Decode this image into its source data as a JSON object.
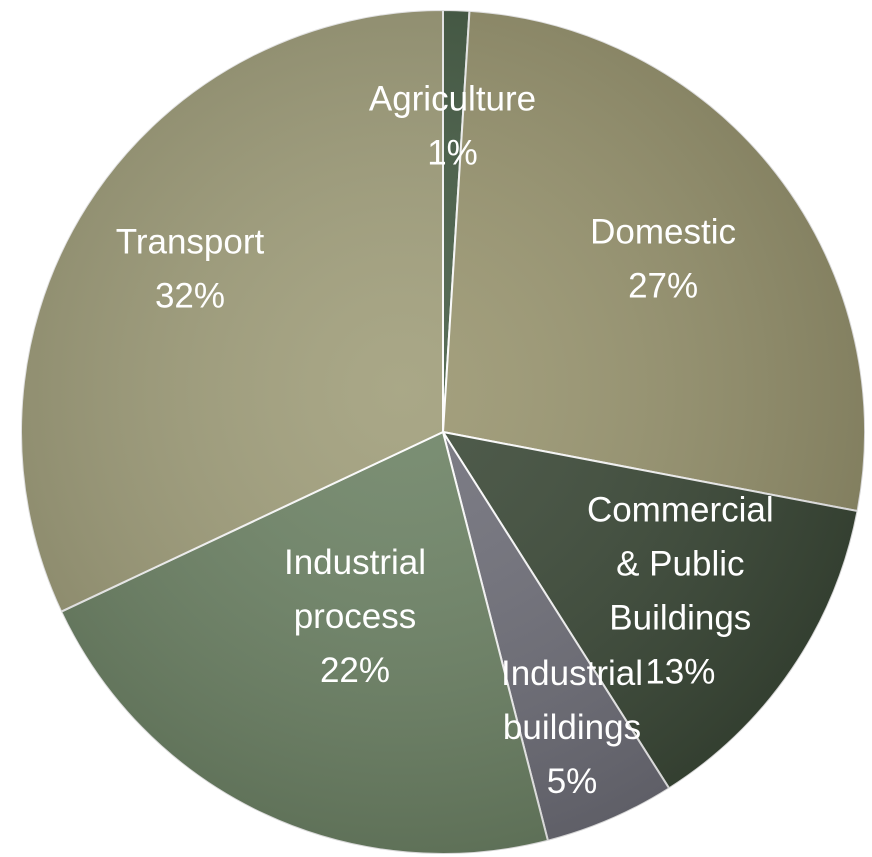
{
  "chart_data": {
    "type": "pie",
    "slices": [
      {
        "label": "Agriculture",
        "value": 1,
        "display": "1%",
        "label_lines": [
          "Agriculture",
          "1%"
        ],
        "color": "#465D45"
      },
      {
        "label": "Domestic",
        "value": 27,
        "display": "27%",
        "label_lines": [
          "Domestic",
          "27%"
        ],
        "color": "#9A9670"
      },
      {
        "label": "Commercial & Public Buildings",
        "value": 13,
        "display": "13%",
        "label_lines": [
          "Commercial",
          "& Public",
          "Buildings",
          "13%"
        ],
        "color": "#3C4A38"
      },
      {
        "label": "Industrial buildings",
        "value": 5,
        "display": "5%",
        "label_lines": [
          "Industrial",
          "buildings",
          "5%"
        ],
        "color": "#70707A"
      },
      {
        "label": "Industrial process",
        "value": 22,
        "display": "22%",
        "label_lines": [
          "Industrial",
          "process",
          "22%"
        ],
        "color": "#6E8466"
      },
      {
        "label": "Transport",
        "value": 32,
        "display": "32%",
        "label_lines": [
          "Transport",
          "32%"
        ],
        "color": "#A09E7A"
      }
    ]
  }
}
